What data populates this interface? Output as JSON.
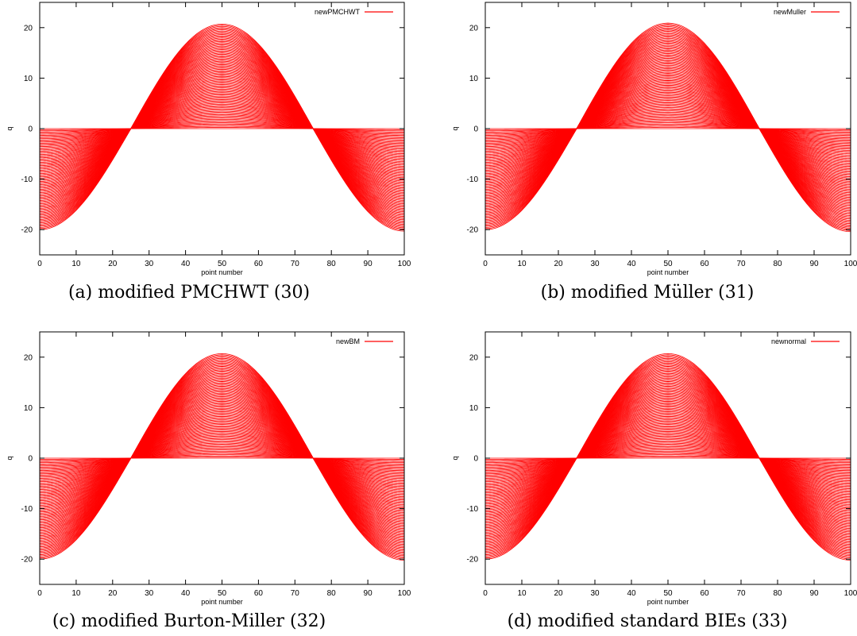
{
  "colors": {
    "series": "#ff0000",
    "axis": "#000000",
    "background": "#ffffff"
  },
  "chart_data": [
    {
      "type": "line",
      "caption": "(a) modified PMCHWT (30)",
      "xlabel": "point number",
      "ylabel": "q",
      "xlim": [
        0,
        100
      ],
      "ylim": [
        -25,
        25
      ],
      "xticks": [
        0,
        10,
        20,
        30,
        40,
        50,
        60,
        70,
        80,
        90,
        100
      ],
      "yticks": [
        -20,
        -10,
        0,
        10,
        20
      ],
      "legend": "top-right",
      "grid": false,
      "series": [
        {
          "name": "newPMCHWT",
          "description": "family of cosine curves q = A*cos(2*pi*x/100), A from 0 to 20 (zero-crossings at x=25 and x=75)",
          "x": [
            0,
            25,
            50,
            75,
            100
          ],
          "envelope_upper": [
            0,
            0,
            20.7,
            0,
            0
          ],
          "envelope_lower": [
            -20,
            0,
            0,
            0,
            -20.3
          ]
        }
      ]
    },
    {
      "type": "line",
      "caption": "(b) modified Müller (31)",
      "xlabel": "point number",
      "ylabel": "q",
      "xlim": [
        0,
        100
      ],
      "ylim": [
        -25,
        25
      ],
      "xticks": [
        0,
        10,
        20,
        30,
        40,
        50,
        60,
        70,
        80,
        90,
        100
      ],
      "yticks": [
        -20,
        -10,
        0,
        10,
        20
      ],
      "legend": "top-right",
      "grid": false,
      "series": [
        {
          "name": "newMuller",
          "description": "family of cosine curves q = A*cos(2*pi*x/100), A from 0 to 20",
          "x": [
            0,
            25,
            50,
            75,
            100
          ],
          "envelope_upper": [
            0,
            0,
            20.9,
            0,
            0
          ],
          "envelope_lower": [
            -20,
            0,
            0,
            0,
            -20.4
          ]
        }
      ]
    },
    {
      "type": "line",
      "caption": "(c) modified Burton-Miller (32)",
      "xlabel": "point number",
      "ylabel": "q",
      "xlim": [
        0,
        100
      ],
      "ylim": [
        -25,
        25
      ],
      "xticks": [
        0,
        10,
        20,
        30,
        40,
        50,
        60,
        70,
        80,
        90,
        100
      ],
      "yticks": [
        -20,
        -10,
        0,
        10,
        20
      ],
      "legend": "top-right",
      "grid": false,
      "series": [
        {
          "name": "newBM",
          "description": "family of cosine curves q = A*cos(2*pi*x/100), A from 0 to 20",
          "x": [
            0,
            25,
            50,
            75,
            100
          ],
          "envelope_upper": [
            0,
            0,
            20.7,
            0,
            0
          ],
          "envelope_lower": [
            -20,
            0,
            0,
            0,
            -20.2
          ]
        }
      ]
    },
    {
      "type": "line",
      "caption": "(d) modified standard BIEs (33)",
      "xlabel": "point number",
      "ylabel": "q",
      "xlim": [
        0,
        100
      ],
      "ylim": [
        -25,
        25
      ],
      "xticks": [
        0,
        10,
        20,
        30,
        40,
        50,
        60,
        70,
        80,
        90,
        100
      ],
      "yticks": [
        -20,
        -10,
        0,
        10,
        20
      ],
      "legend": "top-right",
      "grid": false,
      "series": [
        {
          "name": "newnormal",
          "description": "family of cosine curves q = A*cos(2*pi*x/100), A from 0 to 20",
          "x": [
            0,
            25,
            50,
            75,
            100
          ],
          "envelope_upper": [
            0,
            0,
            20.7,
            0,
            0
          ],
          "envelope_lower": [
            -20,
            0,
            0,
            0,
            -20.2
          ]
        }
      ]
    }
  ]
}
